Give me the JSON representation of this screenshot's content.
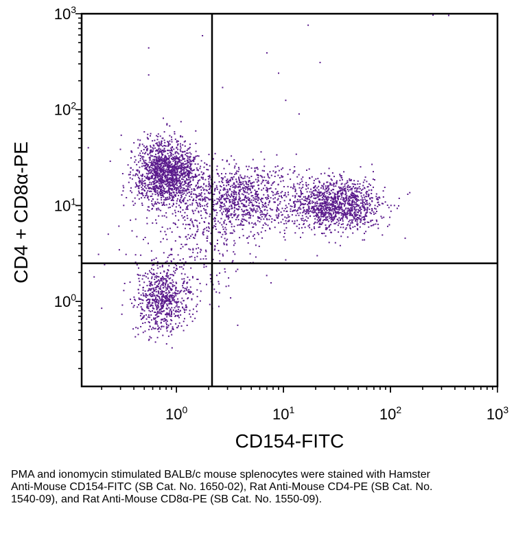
{
  "chart_data": {
    "type": "scatter",
    "xlabel": "CD154-FITC",
    "ylabel": "CD4 + CD8α-PE",
    "x_scale": "log",
    "y_scale": "log",
    "xlim": [
      0.13,
      1000
    ],
    "ylim": [
      0.13,
      1000
    ],
    "x_ticks": [
      {
        "value": 1,
        "base": "10",
        "exp": "0"
      },
      {
        "value": 10,
        "base": "10",
        "exp": "1"
      },
      {
        "value": 100,
        "base": "10",
        "exp": "2"
      },
      {
        "value": 1000,
        "base": "10",
        "exp": "3"
      }
    ],
    "y_ticks": [
      {
        "value": 1,
        "base": "10",
        "exp": "0"
      },
      {
        "value": 10,
        "base": "10",
        "exp": "1"
      },
      {
        "value": 100,
        "base": "10",
        "exp": "2"
      },
      {
        "value": 1000,
        "base": "10",
        "exp": "3"
      }
    ],
    "quadrant_gates": {
      "x": 2.15,
      "y": 2.5
    },
    "grid": false,
    "point_color": "#5a1a8c",
    "populations": [
      {
        "cx": 0.8,
        "cy": 22,
        "sx": 0.15,
        "sy": 0.17,
        "n": 1500
      },
      {
        "cx": 0.75,
        "cy": 1.05,
        "sx": 0.13,
        "sy": 0.16,
        "n": 700
      },
      {
        "cx": 4,
        "cy": 12,
        "sx": 0.25,
        "sy": 0.17,
        "n": 900
      },
      {
        "cx": 30,
        "cy": 10,
        "sx": 0.22,
        "sy": 0.14,
        "n": 1200
      },
      {
        "cx": 1.5,
        "cy": 4.5,
        "sx": 0.3,
        "sy": 0.3,
        "n": 300
      }
    ],
    "outliers": [
      [
        0.2,
        0.85
      ],
      [
        0.55,
        440
      ],
      [
        0.55,
        230
      ],
      [
        1.75,
        590
      ],
      [
        7,
        390
      ],
      [
        9,
        240
      ],
      [
        10.5,
        125
      ],
      [
        2.7,
        170
      ],
      [
        14,
        90
      ],
      [
        17,
        760
      ],
      [
        22,
        310
      ],
      [
        0.17,
        1.8
      ],
      [
        0.15,
        40
      ],
      [
        250,
        980
      ],
      [
        350,
        960
      ]
    ]
  },
  "caption": "PMA and ionomycin stimulated BALB/c mouse splenocytes were stained with Hamster Anti-Mouse CD154-FITC (SB Cat. No. 1650-02), Rat Anti-Mouse CD4-PE (SB Cat. No. 1540-09), and Rat Anti-Mouse CD8α-PE (SB Cat. No. 1550-09)."
}
